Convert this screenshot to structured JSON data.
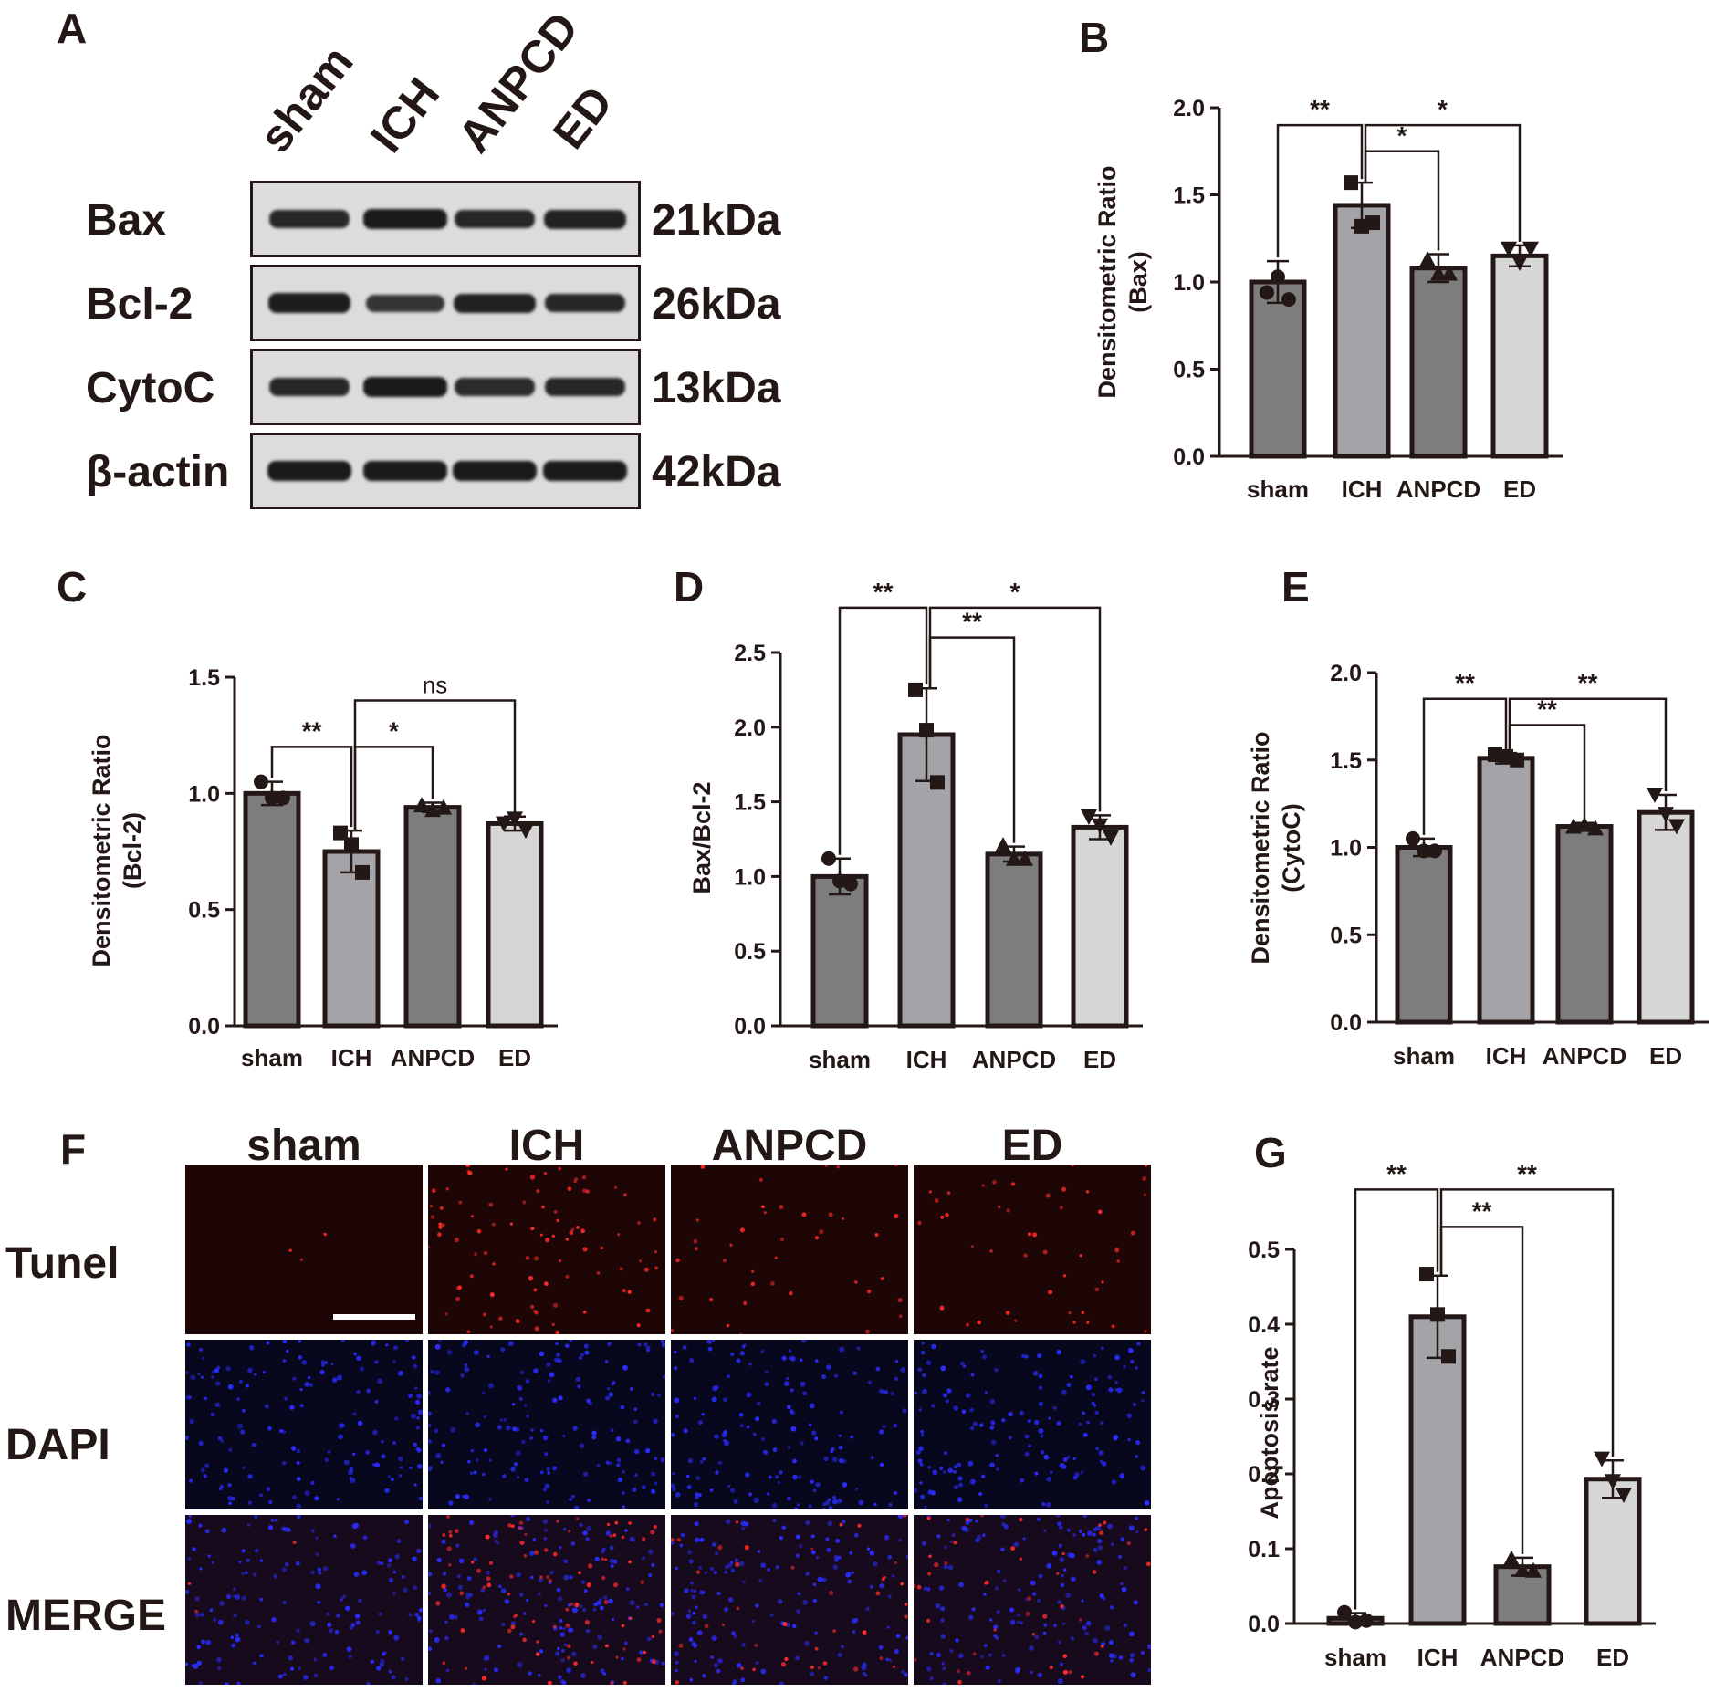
{
  "panels": {
    "A": "A",
    "B": "B",
    "C": "C",
    "D": "D",
    "E": "E",
    "F": "F",
    "G": "G"
  },
  "blot": {
    "lanes": [
      "sham",
      "ICH",
      "ANPCD",
      "ED"
    ],
    "rows": [
      {
        "label": "Bax",
        "kda": "21kDa",
        "intensity": [
          0.85,
          1.0,
          0.85,
          0.9
        ]
      },
      {
        "label": "Bcl-2",
        "kda": "26kDa",
        "intensity": [
          0.95,
          0.7,
          0.9,
          0.85
        ]
      },
      {
        "label": "CytoC",
        "kda": "13kDa",
        "intensity": [
          0.85,
          1.0,
          0.8,
          0.85
        ]
      },
      {
        "label": "β-actin",
        "kda": "42kDa",
        "intensity": [
          1.0,
          1.0,
          1.0,
          1.0
        ]
      }
    ]
  },
  "microscopy": {
    "columns": [
      "sham",
      "ICH",
      "ANPCD",
      "ED"
    ],
    "rows": [
      "Tunel",
      "DAPI",
      "MERGE"
    ]
  },
  "colors": {
    "bar_dark": "#7d7d7d",
    "bar_mid": "#a3a3a8",
    "bar_light": "#d6d6d6",
    "ink": "#231815"
  },
  "chart_data": [
    {
      "panel": "B",
      "type": "bar",
      "categories": [
        "sham",
        "ICH",
        "ANPCD",
        "ED"
      ],
      "values": [
        1.0,
        1.44,
        1.08,
        1.15
      ],
      "errors": [
        0.12,
        0.13,
        0.08,
        0.06
      ],
      "points": [
        [
          0.94,
          1.03,
          0.9
        ],
        [
          1.57,
          1.32,
          1.34
        ],
        [
          1.13,
          1.05,
          1.05
        ],
        [
          1.19,
          1.11,
          1.19
        ]
      ],
      "markers": [
        "circle",
        "square",
        "triangle-up",
        "triangle-down"
      ],
      "ylabel": "Densitometric Ratio",
      "ylabel2": "(Bax)",
      "ylim": [
        0,
        2.0
      ],
      "yticks": [
        0.0,
        0.5,
        1.0,
        1.5,
        2.0
      ],
      "tick_labels": [
        "0.0",
        "0.5",
        "1.0",
        "1.5",
        "2.0"
      ],
      "comparisons": [
        {
          "from": 0,
          "to": 1,
          "label": "**",
          "level": 1.9
        },
        {
          "from": 1,
          "to": 2,
          "label": "*",
          "level": 1.75
        },
        {
          "from": 1,
          "to": 3,
          "label": "*",
          "level": 1.9
        }
      ]
    },
    {
      "panel": "C",
      "type": "bar",
      "categories": [
        "sham",
        "ICH",
        "ANPCD",
        "ED"
      ],
      "values": [
        1.0,
        0.75,
        0.94,
        0.87
      ],
      "errors": [
        0.05,
        0.09,
        0.02,
        0.03
      ],
      "points": [
        [
          1.05,
          0.98,
          0.98
        ],
        [
          0.83,
          0.78,
          0.66
        ],
        [
          0.95,
          0.93,
          0.94
        ],
        [
          0.87,
          0.89,
          0.84
        ]
      ],
      "markers": [
        "circle",
        "square",
        "triangle-up",
        "triangle-down"
      ],
      "ylabel": "Densitometric Ratio",
      "ylabel2": "(Bcl-2)",
      "ylim": [
        0,
        1.5
      ],
      "yticks": [
        0.0,
        0.5,
        1.0,
        1.5
      ],
      "tick_labels": [
        "0.0",
        "0.5",
        "1.0",
        "1.5"
      ],
      "comparisons": [
        {
          "from": 0,
          "to": 1,
          "label": "**",
          "level": 1.2
        },
        {
          "from": 1,
          "to": 2,
          "label": "*",
          "level": 1.2
        },
        {
          "from": 1,
          "to": 3,
          "label": "ns",
          "level": 1.4
        }
      ]
    },
    {
      "panel": "D",
      "type": "bar",
      "categories": [
        "sham",
        "ICH",
        "ANPCD",
        "ED"
      ],
      "values": [
        1.0,
        1.95,
        1.15,
        1.33
      ],
      "errors": [
        0.12,
        0.31,
        0.05,
        0.08
      ],
      "points": [
        [
          1.12,
          0.97,
          0.95
        ],
        [
          2.25,
          1.98,
          1.63
        ],
        [
          1.21,
          1.12,
          1.12
        ],
        [
          1.4,
          1.34,
          1.26
        ]
      ],
      "markers": [
        "circle",
        "square",
        "triangle-up",
        "triangle-down"
      ],
      "ylabel": "Bax/Bcl-2",
      "ylabel2": "",
      "ylim": [
        0,
        2.5
      ],
      "yticks": [
        0.0,
        0.5,
        1.0,
        1.5,
        2.0,
        2.5
      ],
      "tick_labels": [
        "0.0",
        "0.5",
        "1.0",
        "1.5",
        "2.0",
        "2.5"
      ],
      "comparisons": [
        {
          "from": 0,
          "to": 1,
          "label": "**",
          "level": 2.8
        },
        {
          "from": 1,
          "to": 2,
          "label": "**",
          "level": 2.6
        },
        {
          "from": 1,
          "to": 3,
          "label": "*",
          "level": 2.8
        }
      ]
    },
    {
      "panel": "E",
      "type": "bar",
      "categories": [
        "sham",
        "ICH",
        "ANPCD",
        "ED"
      ],
      "values": [
        1.0,
        1.51,
        1.12,
        1.2
      ],
      "errors": [
        0.05,
        0.03,
        0.02,
        0.1
      ],
      "points": [
        [
          1.05,
          0.98,
          0.98
        ],
        [
          1.53,
          1.52,
          1.5
        ],
        [
          1.12,
          1.13,
          1.11
        ],
        [
          1.3,
          1.19,
          1.12
        ]
      ],
      "markers": [
        "circle",
        "square",
        "triangle-up",
        "triangle-down"
      ],
      "ylabel": "Densitometric Ratio",
      "ylabel2": "(CytoC)",
      "ylim": [
        0,
        2.0
      ],
      "yticks": [
        0.0,
        0.5,
        1.0,
        1.5,
        2.0
      ],
      "tick_labels": [
        "0.0",
        "0.5",
        "1.0",
        "1.5",
        "2.0"
      ],
      "comparisons": [
        {
          "from": 0,
          "to": 1,
          "label": "**",
          "level": 1.85
        },
        {
          "from": 1,
          "to": 2,
          "label": "**",
          "level": 1.7
        },
        {
          "from": 1,
          "to": 3,
          "label": "**",
          "level": 1.85
        }
      ]
    },
    {
      "panel": "G",
      "type": "bar",
      "categories": [
        "sham",
        "ICH",
        "ANPCD",
        "ED"
      ],
      "values": [
        0.007,
        0.41,
        0.076,
        0.193
      ],
      "errors": [
        0.007,
        0.055,
        0.012,
        0.025
      ],
      "points": [
        [
          0.015,
          0.002,
          0.004
        ],
        [
          0.467,
          0.413,
          0.357
        ],
        [
          0.087,
          0.072,
          0.071
        ],
        [
          0.22,
          0.19,
          0.172
        ]
      ],
      "markers": [
        "circle",
        "square",
        "triangle-up",
        "triangle-down"
      ],
      "ylabel": "Apoptosis rate",
      "ylabel2": "",
      "ylim": [
        0,
        0.5
      ],
      "yticks": [
        0.0,
        0.1,
        0.2,
        0.3,
        0.4,
        0.5
      ],
      "tick_labels": [
        "0.0",
        "0.1",
        "0.2",
        "0.3",
        "0.4",
        "0.5"
      ],
      "comparisons": [
        {
          "from": 0,
          "to": 1,
          "label": "**",
          "level": 0.58
        },
        {
          "from": 1,
          "to": 2,
          "label": "**",
          "level": 0.53
        },
        {
          "from": 1,
          "to": 3,
          "label": "**",
          "level": 0.58
        }
      ]
    }
  ]
}
